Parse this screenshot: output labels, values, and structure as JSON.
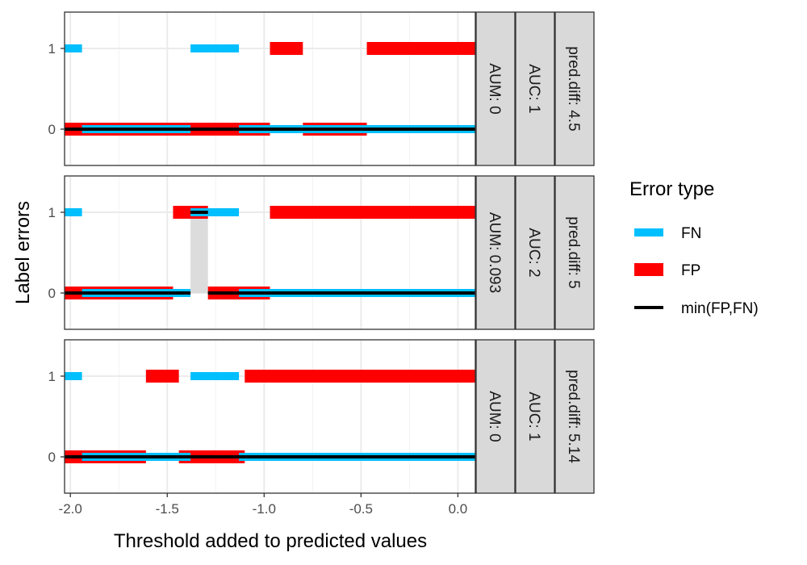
{
  "chart_data": {
    "type": "line",
    "xlabel": "Threshold added to predicted values",
    "ylabel": "Label errors",
    "xlim": [
      -2.03,
      0.09
    ],
    "ylim": [
      -0.45,
      1.45
    ],
    "x_ticks": [
      -2.0,
      -1.5,
      -1.0,
      -0.5,
      0.0
    ],
    "x_tick_labels": [
      "-2.0",
      "-1.5",
      "-1.0",
      "-0.5",
      "0.0"
    ],
    "y_ticks": [
      0,
      1
    ],
    "y_tick_labels": [
      "0",
      "1"
    ],
    "grid": true,
    "legend": {
      "title": "Error type",
      "placement": "right",
      "entries": [
        {
          "label": "FN",
          "color": "#00BFFF"
        },
        {
          "label": "FP",
          "color": "#FF0000"
        },
        {
          "label": "min(FP,FN)",
          "color": "#000000"
        }
      ]
    },
    "colors": {
      "FN": "#00BFFF",
      "FP": "#FF0000",
      "min": "#000000",
      "aum_region": "#DCDCDC",
      "strip_fill": "#D9D9D9"
    },
    "panels": [
      {
        "strips": [
          "AUM: 0",
          "AUC: 1",
          "pred.diff: 4.5"
        ],
        "FN": [
          {
            "x": [
              -2.03,
              -1.94
            ],
            "y": 1
          },
          {
            "x": [
              -1.94,
              -1.38
            ],
            "y": 0
          },
          {
            "x": [
              -1.38,
              -1.13
            ],
            "y": 1
          },
          {
            "x": [
              -1.13,
              0.09
            ],
            "y": 0
          }
        ],
        "FP": [
          {
            "x": [
              -2.03,
              -0.97
            ],
            "y": 0
          },
          {
            "x": [
              -0.97,
              -0.8
            ],
            "y": 1
          },
          {
            "x": [
              -0.8,
              -0.47
            ],
            "y": 0
          },
          {
            "x": [
              -0.47,
              0.09
            ],
            "y": 1
          }
        ],
        "min": [
          {
            "x": [
              -2.03,
              0.09
            ],
            "y": 0
          }
        ],
        "aum_regions": []
      },
      {
        "strips": [
          "AUM: 0.093",
          "AUC: 2",
          "pred.diff: 5"
        ],
        "FN": [
          {
            "x": [
              -2.03,
              -1.94
            ],
            "y": 1
          },
          {
            "x": [
              -1.94,
              -1.38
            ],
            "y": 0
          },
          {
            "x": [
              -1.38,
              -1.13
            ],
            "y": 1
          },
          {
            "x": [
              -1.13,
              0.09
            ],
            "y": 0
          }
        ],
        "FP": [
          {
            "x": [
              -2.03,
              -1.47
            ],
            "y": 0
          },
          {
            "x": [
              -1.47,
              -1.29
            ],
            "y": 1
          },
          {
            "x": [
              -1.29,
              -0.97
            ],
            "y": 0
          },
          {
            "x": [
              -0.97,
              0.09
            ],
            "y": 1
          }
        ],
        "min": [
          {
            "x": [
              -2.03,
              -1.38
            ],
            "y": 0
          },
          {
            "x": [
              -1.38,
              -1.29
            ],
            "y": 1
          },
          {
            "x": [
              -1.29,
              0.09
            ],
            "y": 0
          }
        ],
        "aum_regions": [
          {
            "x": [
              -1.38,
              -1.29
            ],
            "y": [
              0,
              1
            ]
          }
        ]
      },
      {
        "strips": [
          "AUM: 0",
          "AUC: 1",
          "pred.diff: 5.14"
        ],
        "FN": [
          {
            "x": [
              -2.03,
              -1.94
            ],
            "y": 1
          },
          {
            "x": [
              -1.94,
              -1.38
            ],
            "y": 0
          },
          {
            "x": [
              -1.38,
              -1.13
            ],
            "y": 1
          },
          {
            "x": [
              -1.13,
              0.09
            ],
            "y": 0
          }
        ],
        "FP": [
          {
            "x": [
              -2.03,
              -1.61
            ],
            "y": 0
          },
          {
            "x": [
              -1.61,
              -1.44
            ],
            "y": 1
          },
          {
            "x": [
              -1.44,
              -1.1
            ],
            "y": 0
          },
          {
            "x": [
              -1.1,
              0.09
            ],
            "y": 1
          }
        ],
        "min": [
          {
            "x": [
              -2.03,
              0.09
            ],
            "y": 0
          }
        ],
        "aum_regions": []
      }
    ]
  }
}
